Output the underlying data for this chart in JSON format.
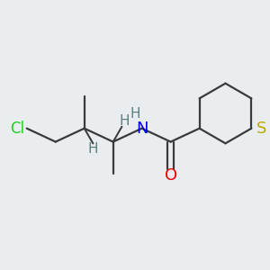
{
  "bg_color": "#eaedf0",
  "bond_color": "#3a3a3a",
  "cl_color": "#22cc22",
  "n_color": "#0000ee",
  "o_color": "#ee0000",
  "s_color": "#bbaa00",
  "h_label_color": "#5a8080",
  "bond_width": 1.6,
  "figsize": [
    3.0,
    3.0
  ],
  "dpi": 100,
  "xlim": [
    0,
    6.0
  ],
  "ylim": [
    0,
    5.5
  ]
}
